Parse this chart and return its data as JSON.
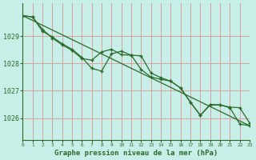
{
  "title": "Graphe pression niveau de la mer (hPa)",
  "bg_color": "#c8eee8",
  "grid_color": "#d8a0a0",
  "line_color": "#2a6b2a",
  "xlim": [
    0,
    23
  ],
  "ylim": [
    1025.2,
    1030.2
  ],
  "yticks": [
    1026,
    1027,
    1028,
    1029
  ],
  "xticks": [
    0,
    1,
    2,
    3,
    4,
    5,
    6,
    7,
    8,
    9,
    10,
    11,
    12,
    13,
    14,
    15,
    16,
    17,
    18,
    19,
    20,
    21,
    22,
    23
  ],
  "series1_x": [
    0,
    1,
    2,
    3,
    4,
    5,
    6,
    7,
    8,
    9,
    10,
    11,
    12,
    13,
    14,
    15,
    16,
    17,
    18,
    19,
    20,
    21,
    22,
    23
  ],
  "series1_y": [
    1029.75,
    1029.7,
    1029.25,
    1028.93,
    1028.68,
    1028.48,
    1028.18,
    1028.12,
    1028.42,
    1028.52,
    1028.32,
    1028.3,
    1027.78,
    1027.5,
    1027.42,
    1027.35,
    1027.1,
    1026.58,
    1026.1,
    1026.5,
    1026.48,
    1026.4,
    1026.38,
    1025.82
  ],
  "series2_x": [
    0,
    1,
    2,
    3,
    4,
    5,
    6,
    7,
    8,
    9,
    10,
    11,
    12,
    13,
    14,
    15,
    16,
    17,
    18,
    19,
    20,
    21,
    22,
    23
  ],
  "series2_y": [
    1029.75,
    1029.7,
    1029.18,
    1028.97,
    1028.72,
    1028.52,
    1028.22,
    1027.82,
    1027.72,
    1028.35,
    1028.45,
    1028.3,
    1028.28,
    1027.65,
    1027.48,
    1027.35,
    1027.1,
    1026.58,
    1026.1,
    1026.48,
    1026.48,
    1026.38,
    1025.78,
    1025.72
  ],
  "series3_x": [
    0,
    23
  ],
  "series3_y": [
    1029.75,
    1025.72
  ]
}
